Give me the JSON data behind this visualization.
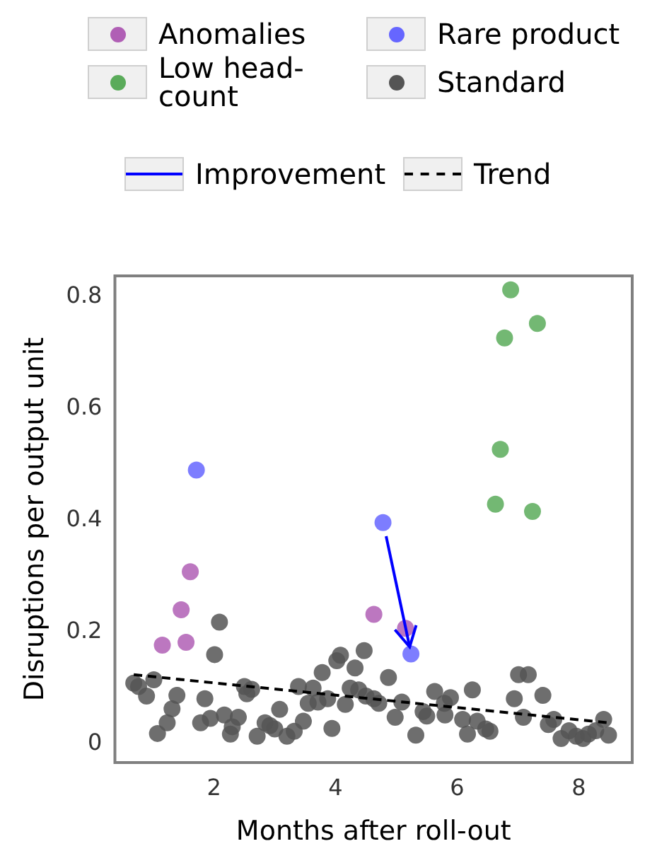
{
  "chart_data": {
    "type": "scatter",
    "xlabel": "Months after roll-out",
    "ylabel": "Disruptions per output unit",
    "xlim": [
      0.37,
      8.88
    ],
    "ylim": [
      -0.033,
      0.837
    ],
    "xticks": [
      2,
      4,
      6,
      8
    ],
    "yticks": [
      0,
      0.2,
      0.4,
      0.6,
      0.8
    ],
    "grid": false,
    "legend": "top",
    "marker": "circle",
    "annotations": [
      "Improvement"
    ],
    "series": [
      {
        "name": "Anomalies",
        "color": "#b05fb5",
        "x": [
          1.15,
          1.46,
          1.61,
          1.54,
          4.63,
          5.15
        ],
        "values": [
          0.177,
          0.24,
          0.308,
          0.182,
          0.232,
          0.207
        ]
      },
      {
        "name": "Low head-count",
        "color": "#5aab5a",
        "x": [
          6.88,
          6.78,
          7.32,
          6.71,
          6.63,
          7.24
        ],
        "values": [
          0.812,
          0.726,
          0.752,
          0.527,
          0.429,
          0.416
        ]
      },
      {
        "name": "Rare product",
        "color": "#6666ff",
        "x": [
          1.71,
          4.78,
          5.24
        ],
        "values": [
          0.49,
          0.396,
          0.161
        ]
      },
      {
        "name": "Standard",
        "color": "#555555",
        "x": [
          2.09,
          2.01,
          0.68,
          0.76,
          0.89,
          1.01,
          1.39,
          1.31,
          1.23,
          1.07,
          1.85,
          1.78,
          1.94,
          2.17,
          2.4,
          2.27,
          2.3,
          2.5,
          2.62,
          2.54,
          3.08,
          2.84,
          2.92,
          2.71,
          3.0,
          3.2,
          3.32,
          3.47,
          3.39,
          3.63,
          3.55,
          3.71,
          3.87,
          3.94,
          3.78,
          4.02,
          4.08,
          4.32,
          4.47,
          4.24,
          4.16,
          4.38,
          4.5,
          4.63,
          4.87,
          4.71,
          4.98,
          5.09,
          5.32,
          5.44,
          5.5,
          5.63,
          5.79,
          5.89,
          5.8,
          6.09,
          6.17,
          6.25,
          6.33,
          6.47,
          6.54,
          6.94,
          7.01,
          7.17,
          7.09,
          7.41,
          7.5,
          7.59,
          7.71,
          7.84,
          7.96,
          8.07,
          8.16,
          8.28,
          8.41,
          8.49
        ],
        "values": [
          0.218,
          0.16,
          0.109,
          0.103,
          0.086,
          0.115,
          0.087,
          0.063,
          0.038,
          0.019,
          0.081,
          0.038,
          0.046,
          0.052,
          0.048,
          0.018,
          0.031,
          0.103,
          0.098,
          0.09,
          0.062,
          0.038,
          0.033,
          0.014,
          0.027,
          0.014,
          0.023,
          0.041,
          0.103,
          0.1,
          0.073,
          0.075,
          0.081,
          0.028,
          0.128,
          0.149,
          0.159,
          0.136,
          0.167,
          0.1,
          0.071,
          0.097,
          0.086,
          0.081,
          0.119,
          0.073,
          0.048,
          0.075,
          0.016,
          0.058,
          0.05,
          0.094,
          0.073,
          0.083,
          0.052,
          0.044,
          0.018,
          0.097,
          0.041,
          0.027,
          0.023,
          0.081,
          0.124,
          0.124,
          0.048,
          0.087,
          0.035,
          0.044,
          0.01,
          0.024,
          0.014,
          0.01,
          0.018,
          0.024,
          0.044,
          0.016
        ]
      },
      {
        "name": "Trend",
        "type": "line",
        "color": "#000000",
        "line_style": "dashed",
        "marker": "none",
        "x": [
          0.68,
          8.49
        ],
        "values": [
          0.124,
          0.038
        ]
      }
    ]
  }
}
